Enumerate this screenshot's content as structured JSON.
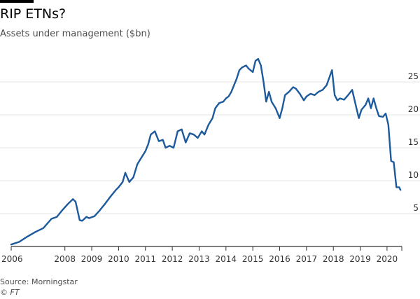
{
  "title": "RIP ETNs?",
  "subtitle": "Assets under management ($bn)",
  "source": "Source: Morningstar",
  "credit": "© FT",
  "colors": {
    "line": "#1d5a9c",
    "grid": "#e6e6e6",
    "axis": "#333333",
    "text": "#333333"
  },
  "chart_data": {
    "type": "line",
    "title": "RIP ETNs?",
    "ylabel": "Assets under management ($bn)",
    "xlabel": "",
    "xlim": [
      2006,
      2020.55
    ],
    "ylim": [
      0,
      30
    ],
    "yticks": [
      5,
      10,
      15,
      20,
      25
    ],
    "xticks": [
      2006,
      2008,
      2009,
      2010,
      2011,
      2012,
      2013,
      2014,
      2015,
      2016,
      2017,
      2018,
      2019,
      2020
    ],
    "grid": true,
    "y_axis_side": "right",
    "series": [
      {
        "x": [
          2006.0,
          2006.3,
          2006.6,
          2006.9,
          2007.2,
          2007.5,
          2007.7,
          2007.9,
          2008.1,
          2008.3,
          2008.4,
          2008.55,
          2008.65,
          2008.8,
          2008.9,
          2009.1,
          2009.3,
          2009.5,
          2009.7,
          2009.9,
          2010.0,
          2010.15,
          2010.25,
          2010.4,
          2010.55,
          2010.7,
          2010.85,
          2011.0,
          2011.1,
          2011.2,
          2011.35,
          2011.5,
          2011.65,
          2011.75,
          2011.9,
          2012.05,
          2012.2,
          2012.35,
          2012.5,
          2012.65,
          2012.8,
          2012.95,
          2013.1,
          2013.2,
          2013.35,
          2013.5,
          2013.6,
          2013.75,
          2013.9,
          2014.0,
          2014.1,
          2014.2,
          2014.3,
          2014.4,
          2014.5,
          2014.6,
          2014.75,
          2014.85,
          2015.0,
          2015.1,
          2015.2,
          2015.3,
          2015.4,
          2015.5,
          2015.6,
          2015.7,
          2015.85,
          2016.0,
          2016.1,
          2016.2,
          2016.35,
          2016.5,
          2016.6,
          2016.75,
          2016.9,
          2017.0,
          2017.15,
          2017.3,
          2017.45,
          2017.6,
          2017.75,
          2017.95,
          2018.05,
          2018.15,
          2018.25,
          2018.4,
          2018.55,
          2018.7,
          2018.85,
          2018.95,
          2019.05,
          2019.2,
          2019.3,
          2019.4,
          2019.5,
          2019.6,
          2019.7,
          2019.85,
          2019.95,
          2020.05,
          2020.15,
          2020.25,
          2020.35,
          2020.45,
          2020.5
        ],
        "values": [
          0.3,
          0.7,
          1.5,
          2.2,
          2.8,
          4.2,
          4.5,
          5.5,
          6.4,
          7.2,
          6.8,
          4.0,
          3.9,
          4.5,
          4.3,
          4.6,
          5.5,
          6.5,
          7.6,
          8.6,
          9.0,
          9.8,
          11.2,
          9.8,
          10.5,
          12.5,
          13.5,
          14.5,
          15.5,
          17.0,
          17.5,
          16.0,
          16.2,
          15.0,
          15.3,
          15.0,
          17.5,
          17.8,
          15.8,
          17.2,
          17.0,
          16.5,
          17.5,
          17.0,
          18.5,
          19.5,
          21.0,
          21.8,
          22.0,
          22.5,
          22.8,
          23.5,
          24.5,
          25.5,
          26.8,
          27.2,
          27.5,
          27.0,
          26.5,
          28.2,
          28.5,
          27.5,
          25.0,
          22.0,
          23.5,
          22.0,
          21.0,
          19.5,
          21.0,
          23.0,
          23.5,
          24.2,
          24.0,
          23.2,
          22.2,
          22.8,
          23.2,
          23.0,
          23.5,
          23.8,
          24.5,
          26.8,
          23.0,
          22.2,
          22.5,
          22.3,
          23.0,
          23.8,
          21.2,
          19.5,
          20.8,
          21.5,
          22.5,
          21.0,
          22.5,
          21.0,
          19.8,
          19.7,
          20.2,
          18.5,
          13.0,
          12.8,
          9.0,
          9.0,
          8.6
        ]
      }
    ]
  }
}
